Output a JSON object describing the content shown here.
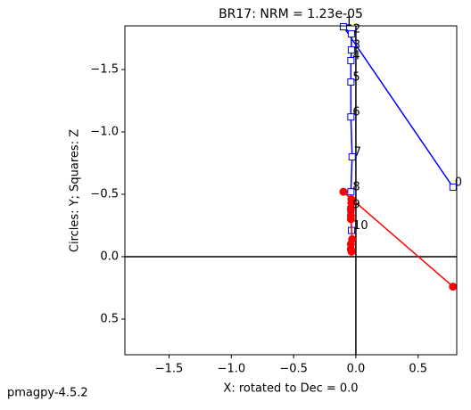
{
  "chart_data": {
    "type": "zijderveld",
    "title": "BR17: NRM =  1.23e-05",
    "xlabel": "X: rotated to Dec =     0.0",
    "ylabel": "Circles: Y; Squares: Z",
    "footer": "pmagpy-4.5.2",
    "x": [
      0.78,
      -0.1,
      -0.036,
      -0.036,
      -0.04,
      -0.04,
      -0.04,
      -0.03,
      -0.04,
      -0.04,
      -0.035
    ],
    "point_labels": [
      "0",
      "1",
      "2",
      "3",
      "4",
      "5",
      "6",
      "7",
      "8",
      "9",
      "10"
    ],
    "series": [
      {
        "marker": "square",
        "color": "#0000ff",
        "values": [
          -0.557,
          -1.843,
          -1.786,
          -1.657,
          -1.571,
          -1.4,
          -1.12,
          -0.8,
          -0.52,
          -0.38,
          -0.21
        ]
      },
      {
        "marker": "circle",
        "color": "#ff0000",
        "values": [
          0.24,
          -0.52,
          -0.46,
          -0.43,
          -0.38,
          -0.33,
          -0.3,
          -0.14,
          -0.1,
          -0.06,
          -0.04
        ]
      }
    ],
    "xlim": [
      -1.855,
      0.81
    ],
    "ylim": [
      0.786,
      -1.85
    ],
    "xticks": [
      {
        "value": -1.5,
        "label": "−1.5"
      },
      {
        "value": -1.0,
        "label": "−1.0"
      },
      {
        "value": -0.5,
        "label": "−0.5"
      },
      {
        "value": 0.0,
        "label": "0.0"
      },
      {
        "value": 0.5,
        "label": "0.5"
      }
    ],
    "yticks": [
      {
        "value": -1.5,
        "label": "−1.5"
      },
      {
        "value": -1.0,
        "label": "−1.0"
      },
      {
        "value": -0.5,
        "label": "−0.5"
      },
      {
        "value": 0.0,
        "label": "0.0"
      },
      {
        "value": 0.5,
        "label": "0.5"
      }
    ],
    "origin_lines": true
  }
}
